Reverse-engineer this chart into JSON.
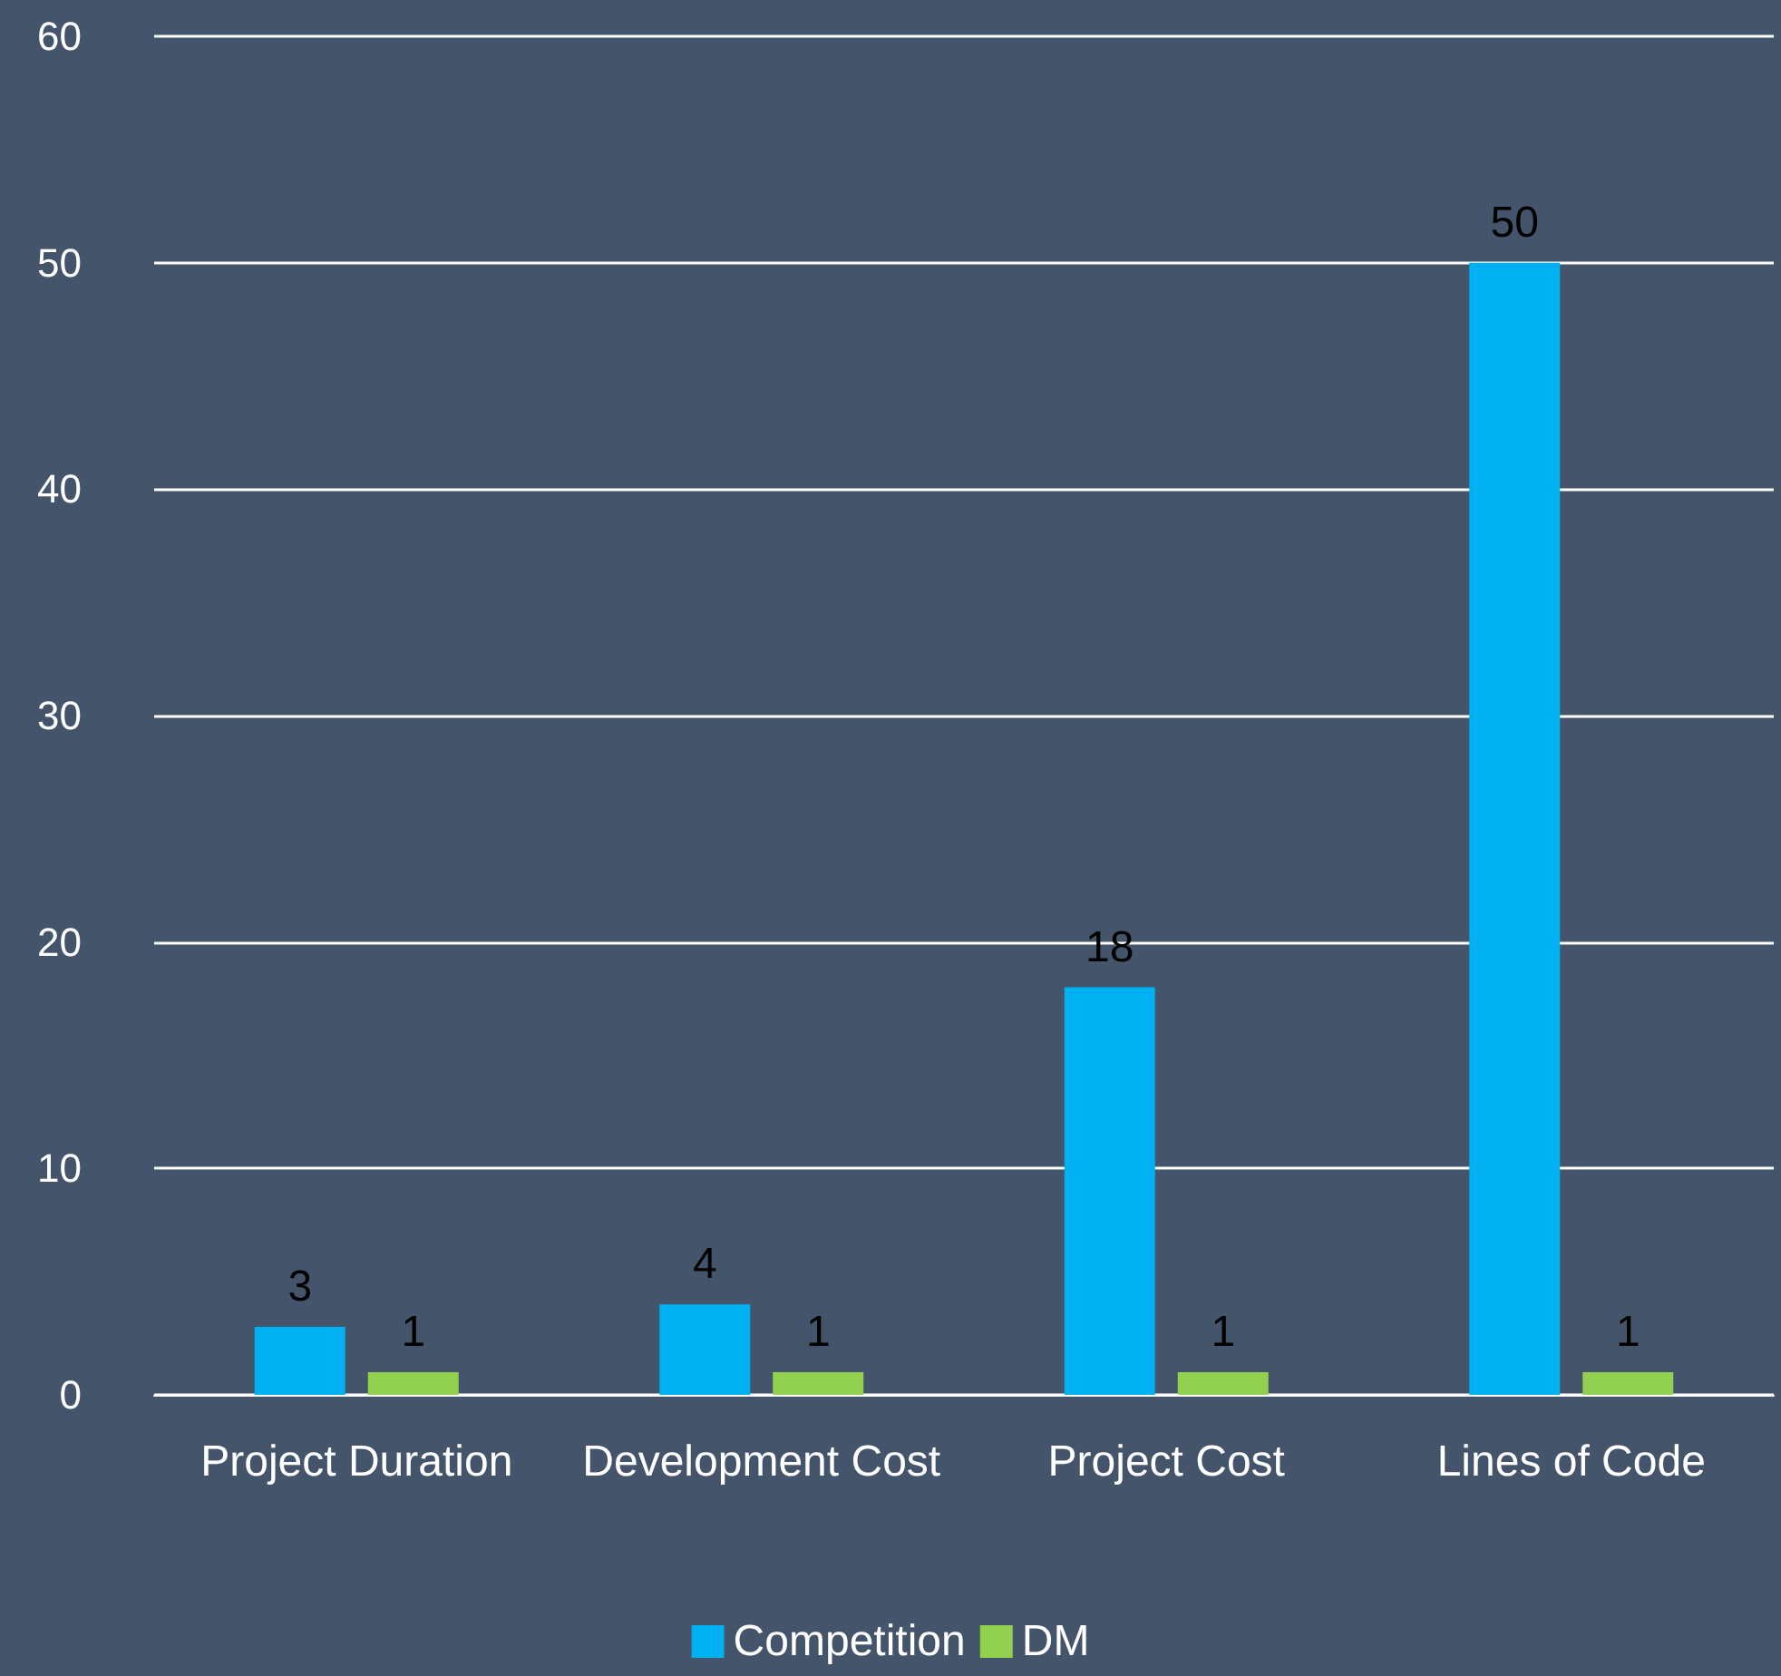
{
  "chart_data": {
    "type": "bar",
    "categories": [
      "Project Duration",
      "Development Cost",
      "Project Cost",
      "Lines of Code"
    ],
    "series": [
      {
        "name": "Competition",
        "color": "#00b0f0",
        "values": [
          3,
          4,
          18,
          50
        ]
      },
      {
        "name": "DM",
        "color": "#92d050",
        "values": [
          1,
          1,
          1,
          1
        ]
      }
    ],
    "ylim": [
      0,
      60
    ],
    "yticks": [
      0,
      10,
      20,
      30,
      40,
      50,
      60
    ],
    "grid": "y",
    "legend": "bottom",
    "data_labels": true
  }
}
